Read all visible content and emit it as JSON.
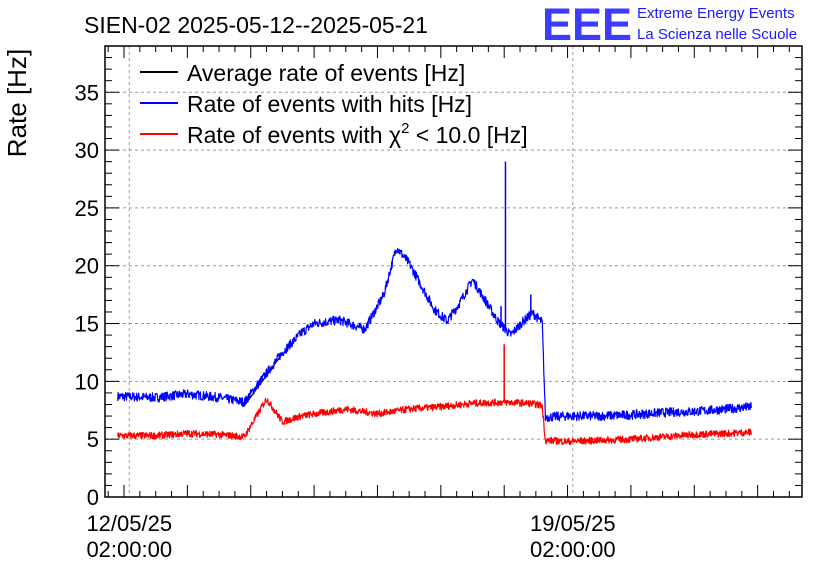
{
  "chart_data": {
    "type": "line",
    "title": "SIEN-02 2025-05-12--2025-05-21",
    "xlabel": "",
    "ylabel": "Rate [Hz]",
    "x_unit": "days since 2025-05-12 00:00",
    "xlim": [
      -0.3,
      10.7
    ],
    "ylim": [
      0,
      39
    ],
    "y_ticks": [
      0,
      5,
      10,
      15,
      20,
      25,
      30,
      35
    ],
    "x_ticks": [
      {
        "x": 0.083,
        "date": "12/05/25",
        "time": "02:00:00"
      },
      {
        "x": 7.083,
        "date": "19/05/25",
        "time": "02:00:00"
      }
    ],
    "grid": true,
    "legend_position": "top-left",
    "legend": [
      {
        "label_pre": "Average rate of events [Hz]",
        "label_sup": "",
        "label_post": "",
        "color": "#000000"
      },
      {
        "label_pre": "Rate of events with hits [Hz]",
        "label_sup": "",
        "label_post": "",
        "color": "#0000ff"
      },
      {
        "label_pre": "Rate of events with χ",
        "label_sup": "2",
        "label_post": " < 10.0 [Hz]",
        "color": "#ff0000"
      }
    ],
    "series": [
      {
        "name": "Average rate of events [Hz]",
        "color": "#000000",
        "noise": 0.2,
        "points": [
          [
            1.9,
            7.9
          ],
          [
            2.5,
            12.4
          ]
        ]
      },
      {
        "name": "Rate of events with hits [Hz]",
        "color": "#0000ff",
        "noise": 0.8,
        "points": [
          [
            -0.1,
            8.7
          ],
          [
            0.5,
            8.6
          ],
          [
            1.0,
            8.9
          ],
          [
            1.5,
            8.6
          ],
          [
            1.9,
            8.2
          ],
          [
            2.5,
            12.5
          ],
          [
            2.8,
            14.2
          ],
          [
            3.0,
            15.0
          ],
          [
            3.4,
            15.3
          ],
          [
            3.8,
            14.5
          ],
          [
            4.1,
            17.5
          ],
          [
            4.3,
            21.6
          ],
          [
            4.5,
            20.2
          ],
          [
            4.9,
            16.2
          ],
          [
            5.1,
            15.2
          ],
          [
            5.3,
            16.8
          ],
          [
            5.5,
            18.8
          ],
          [
            5.7,
            17.0
          ],
          [
            5.9,
            15.2
          ],
          [
            6.1,
            14.0
          ],
          [
            6.3,
            15.2
          ],
          [
            6.45,
            15.9
          ],
          [
            6.6,
            15.1
          ],
          [
            6.65,
            6.9
          ],
          [
            7.0,
            7.0
          ],
          [
            7.5,
            7.0
          ],
          [
            8.0,
            7.1
          ],
          [
            8.5,
            7.3
          ],
          [
            9.0,
            7.4
          ],
          [
            9.5,
            7.6
          ],
          [
            9.9,
            7.8
          ]
        ],
        "spikes": [
          {
            "x": 6.02,
            "y": 29.0
          },
          {
            "x": 5.95,
            "y": 16.5
          },
          {
            "x": 6.42,
            "y": 17.5
          }
        ]
      },
      {
        "name": "Rate of events with χ² < 10.0 [Hz]",
        "color": "#ff0000",
        "noise": 0.6,
        "points": [
          [
            -0.1,
            5.3
          ],
          [
            0.5,
            5.3
          ],
          [
            1.0,
            5.5
          ],
          [
            1.5,
            5.4
          ],
          [
            1.9,
            5.2
          ],
          [
            2.25,
            8.5
          ],
          [
            2.5,
            6.5
          ],
          [
            2.8,
            7.0
          ],
          [
            3.5,
            7.6
          ],
          [
            4.0,
            7.2
          ],
          [
            4.5,
            7.6
          ],
          [
            5.0,
            7.8
          ],
          [
            5.5,
            8.1
          ],
          [
            6.0,
            8.2
          ],
          [
            6.4,
            8.1
          ],
          [
            6.6,
            7.9
          ],
          [
            6.65,
            4.9
          ],
          [
            7.0,
            4.8
          ],
          [
            7.5,
            4.9
          ],
          [
            8.0,
            5.0
          ],
          [
            8.5,
            5.2
          ],
          [
            9.0,
            5.4
          ],
          [
            9.5,
            5.5
          ],
          [
            9.9,
            5.6
          ]
        ],
        "spikes": [
          {
            "x": 6.0,
            "y": 13.2
          }
        ]
      }
    ]
  },
  "logo": {
    "letters": "EEE",
    "line1": "Extreme Energy Events",
    "line2": "La Scienza nelle Scuole",
    "color": "#1a1aff"
  }
}
